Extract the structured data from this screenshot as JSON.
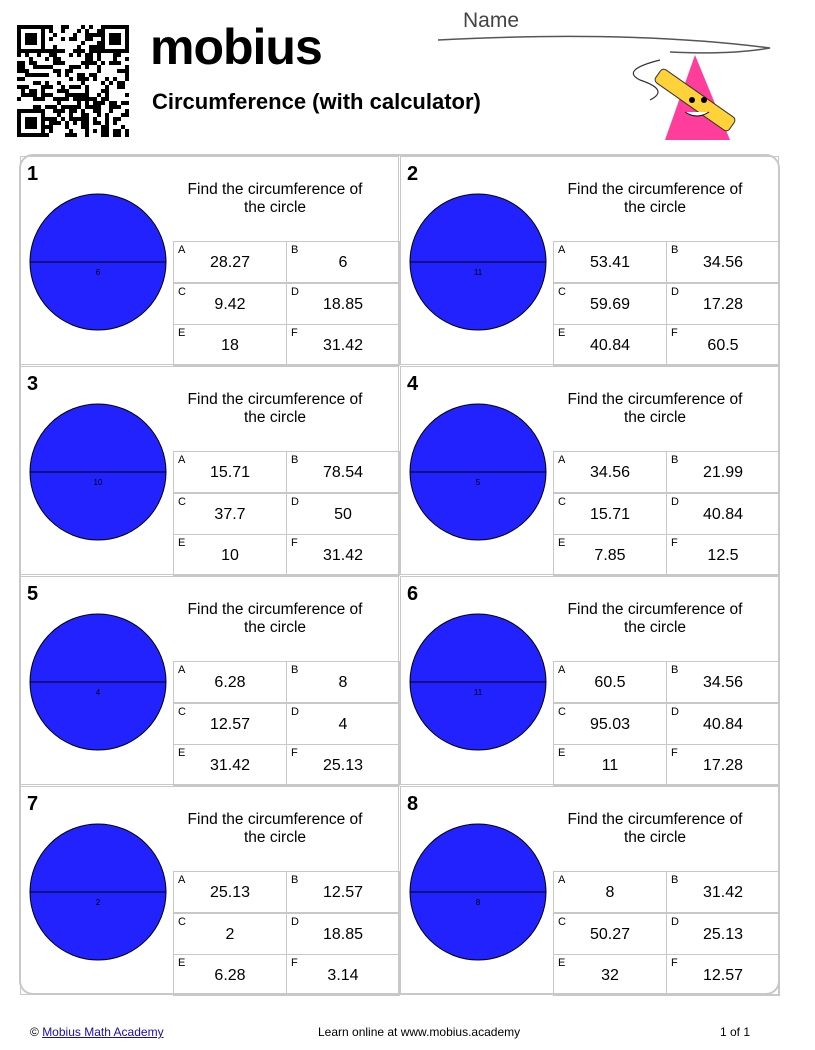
{
  "header": {
    "name_label": "Name",
    "logo": "mobius",
    "title": "Circumference (with calculator)"
  },
  "questions": [
    {
      "number": "1",
      "prompt": "Find the circumference of the circle",
      "diameter": "6",
      "options": [
        {
          "letter": "A",
          "value": "28.27"
        },
        {
          "letter": "B",
          "value": "6"
        },
        {
          "letter": "C",
          "value": "9.42"
        },
        {
          "letter": "D",
          "value": "18.85"
        },
        {
          "letter": "E",
          "value": "18"
        },
        {
          "letter": "F",
          "value": "31.42"
        }
      ]
    },
    {
      "number": "2",
      "prompt": "Find the circumference of the circle",
      "diameter": "11",
      "options": [
        {
          "letter": "A",
          "value": "53.41"
        },
        {
          "letter": "B",
          "value": "34.56"
        },
        {
          "letter": "C",
          "value": "59.69"
        },
        {
          "letter": "D",
          "value": "17.28"
        },
        {
          "letter": "E",
          "value": "40.84"
        },
        {
          "letter": "F",
          "value": "60.5"
        }
      ]
    },
    {
      "number": "3",
      "prompt": "Find the circumference of the circle",
      "diameter": "10",
      "options": [
        {
          "letter": "A",
          "value": "15.71"
        },
        {
          "letter": "B",
          "value": "78.54"
        },
        {
          "letter": "C",
          "value": "37.7"
        },
        {
          "letter": "D",
          "value": "50"
        },
        {
          "letter": "E",
          "value": "10"
        },
        {
          "letter": "F",
          "value": "31.42"
        }
      ]
    },
    {
      "number": "4",
      "prompt": "Find the circumference of the circle",
      "diameter": "5",
      "options": [
        {
          "letter": "A",
          "value": "34.56"
        },
        {
          "letter": "B",
          "value": "21.99"
        },
        {
          "letter": "C",
          "value": "15.71"
        },
        {
          "letter": "D",
          "value": "40.84"
        },
        {
          "letter": "E",
          "value": "7.85"
        },
        {
          "letter": "F",
          "value": "12.5"
        }
      ]
    },
    {
      "number": "5",
      "prompt": "Find the circumference of the circle",
      "diameter": "4",
      "options": [
        {
          "letter": "A",
          "value": "6.28"
        },
        {
          "letter": "B",
          "value": "8"
        },
        {
          "letter": "C",
          "value": "12.57"
        },
        {
          "letter": "D",
          "value": "4"
        },
        {
          "letter": "E",
          "value": "31.42"
        },
        {
          "letter": "F",
          "value": "25.13"
        }
      ]
    },
    {
      "number": "6",
      "prompt": "Find the circumference of the circle",
      "diameter": "11",
      "options": [
        {
          "letter": "A",
          "value": "60.5"
        },
        {
          "letter": "B",
          "value": "34.56"
        },
        {
          "letter": "C",
          "value": "95.03"
        },
        {
          "letter": "D",
          "value": "40.84"
        },
        {
          "letter": "E",
          "value": "11"
        },
        {
          "letter": "F",
          "value": "17.28"
        }
      ]
    },
    {
      "number": "7",
      "prompt": "Find the circumference of the circle",
      "diameter": "2",
      "options": [
        {
          "letter": "A",
          "value": "25.13"
        },
        {
          "letter": "B",
          "value": "12.57"
        },
        {
          "letter": "C",
          "value": "2"
        },
        {
          "letter": "D",
          "value": "18.85"
        },
        {
          "letter": "E",
          "value": "6.28"
        },
        {
          "letter": "F",
          "value": "3.14"
        }
      ]
    },
    {
      "number": "8",
      "prompt": "Find the circumference of the circle",
      "diameter": "8",
      "options": [
        {
          "letter": "A",
          "value": "8"
        },
        {
          "letter": "B",
          "value": "31.42"
        },
        {
          "letter": "C",
          "value": "50.27"
        },
        {
          "letter": "D",
          "value": "25.13"
        },
        {
          "letter": "E",
          "value": "32"
        },
        {
          "letter": "F",
          "value": "12.57"
        }
      ]
    }
  ],
  "footer": {
    "copyright": "©",
    "link": "Mobius Math Academy",
    "center": "Learn online at www.mobius.academy",
    "page": "1 of 1"
  }
}
